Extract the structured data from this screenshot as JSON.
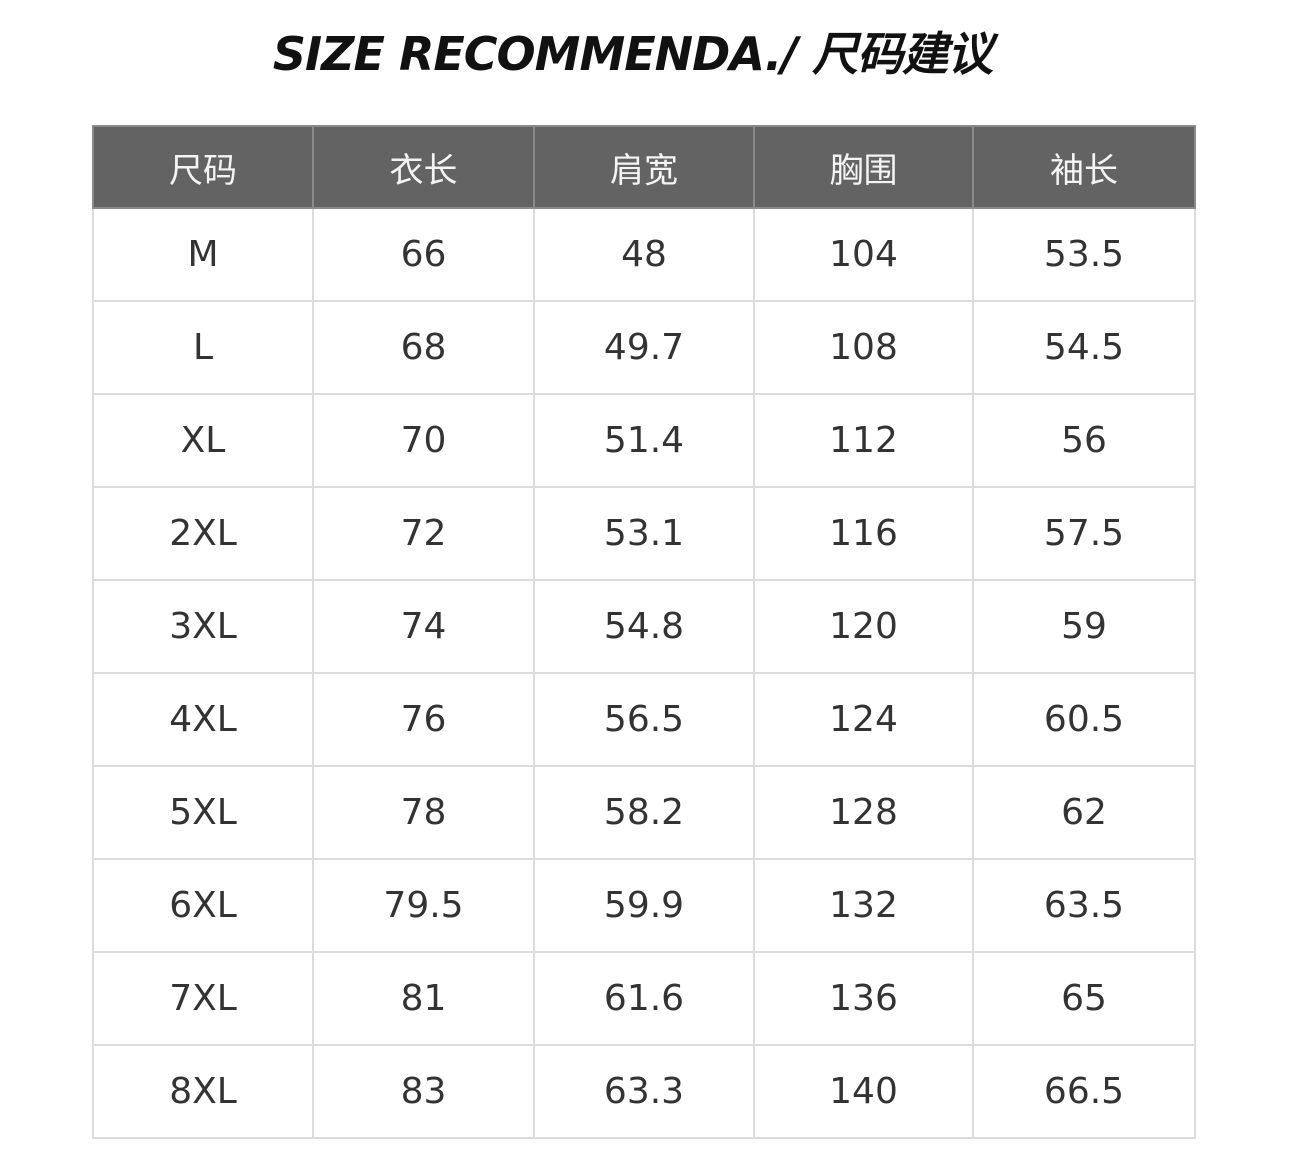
{
  "title": "SIZE RECOMMENDA./ 尺码建议",
  "table": {
    "header_bg": "#636363",
    "headers": [
      "尺码",
      "衣长",
      "肩宽",
      "胸围",
      "袖长"
    ],
    "rows": [
      [
        "M",
        "66",
        "48",
        "104",
        "53.5"
      ],
      [
        "L",
        "68",
        "49.7",
        "108",
        "54.5"
      ],
      [
        "XL",
        "70",
        "51.4",
        "112",
        "56"
      ],
      [
        "2XL",
        "72",
        "53.1",
        "116",
        "57.5"
      ],
      [
        "3XL",
        "74",
        "54.8",
        "120",
        "59"
      ],
      [
        "4XL",
        "76",
        "56.5",
        "124",
        "60.5"
      ],
      [
        "5XL",
        "78",
        "58.2",
        "128",
        "62"
      ],
      [
        "6XL",
        "79.5",
        "59.9",
        "132",
        "63.5"
      ],
      [
        "7XL",
        "81",
        "61.6",
        "136",
        "65"
      ],
      [
        "8XL",
        "83",
        "63.3",
        "140",
        "66.5"
      ]
    ]
  }
}
